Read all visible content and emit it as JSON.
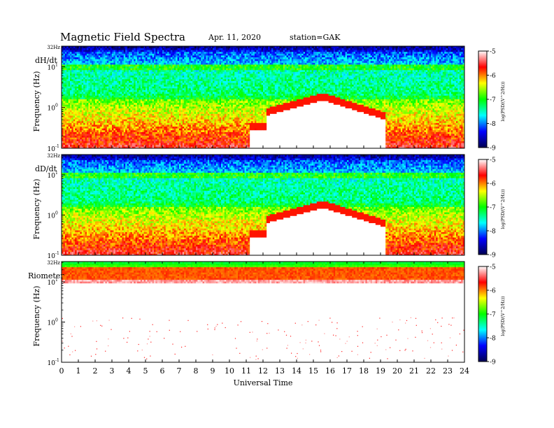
{
  "header": {
    "title": "Magnetic  Field  Spectra",
    "date": "Apr. 11, 2020",
    "station": "station=GAK"
  },
  "colors": {
    "colormap": [
      "#000050",
      "#0000ff",
      "#00ffff",
      "#00ff00",
      "#ffff00",
      "#ff0000",
      "#ffffff"
    ]
  },
  "chart_data": {
    "type": "heatmap",
    "xlabel": "Universal Time",
    "x_ticks": [
      "0",
      "1",
      "2",
      "3",
      "4",
      "5",
      "6",
      "7",
      "8",
      "9",
      "10",
      "11",
      "12",
      "13",
      "14",
      "15",
      "16",
      "17",
      "18",
      "19",
      "20",
      "21",
      "22",
      "23",
      "24"
    ],
    "xlim": [
      0,
      24
    ],
    "y_scale": "log",
    "y_range_hz": [
      0.1,
      32
    ],
    "colorbar": {
      "label": "log(PSD/(V^2/Hz))",
      "ticks": [
        "-5",
        "-6",
        "-7",
        "-8",
        "-9"
      ],
      "range": [
        -9,
        -5
      ]
    },
    "panels": [
      {
        "name": "dH/dt",
        "ylabel": "Frequency (Hz)",
        "y_ticks": [
          {
            "value": 32,
            "label": "32Hz"
          },
          {
            "value": 10,
            "label": "10",
            "exp": "1"
          },
          {
            "value": 1,
            "label": "10",
            "exp": "0"
          },
          {
            "value": 0.1,
            "label": "10",
            "exp": "-1"
          }
        ]
      },
      {
        "name": "dD/dt",
        "ylabel": "Frequency (Hz)",
        "y_ticks": [
          {
            "value": 32,
            "label": "32Hz"
          },
          {
            "value": 10,
            "label": "10",
            "exp": "1"
          },
          {
            "value": 1,
            "label": "10",
            "exp": "0"
          },
          {
            "value": 0.1,
            "label": "10",
            "exp": "-1"
          }
        ]
      },
      {
        "name": "Riometer",
        "ylabel": "Frequency (Hz)",
        "y_ticks": [
          {
            "value": 32,
            "label": "32Hz"
          },
          {
            "value": 10,
            "label": "10",
            "exp": "1"
          },
          {
            "value": 1,
            "label": "10",
            "exp": "0"
          },
          {
            "value": 0.1,
            "label": "10",
            "exp": "-1"
          }
        ]
      }
    ]
  }
}
